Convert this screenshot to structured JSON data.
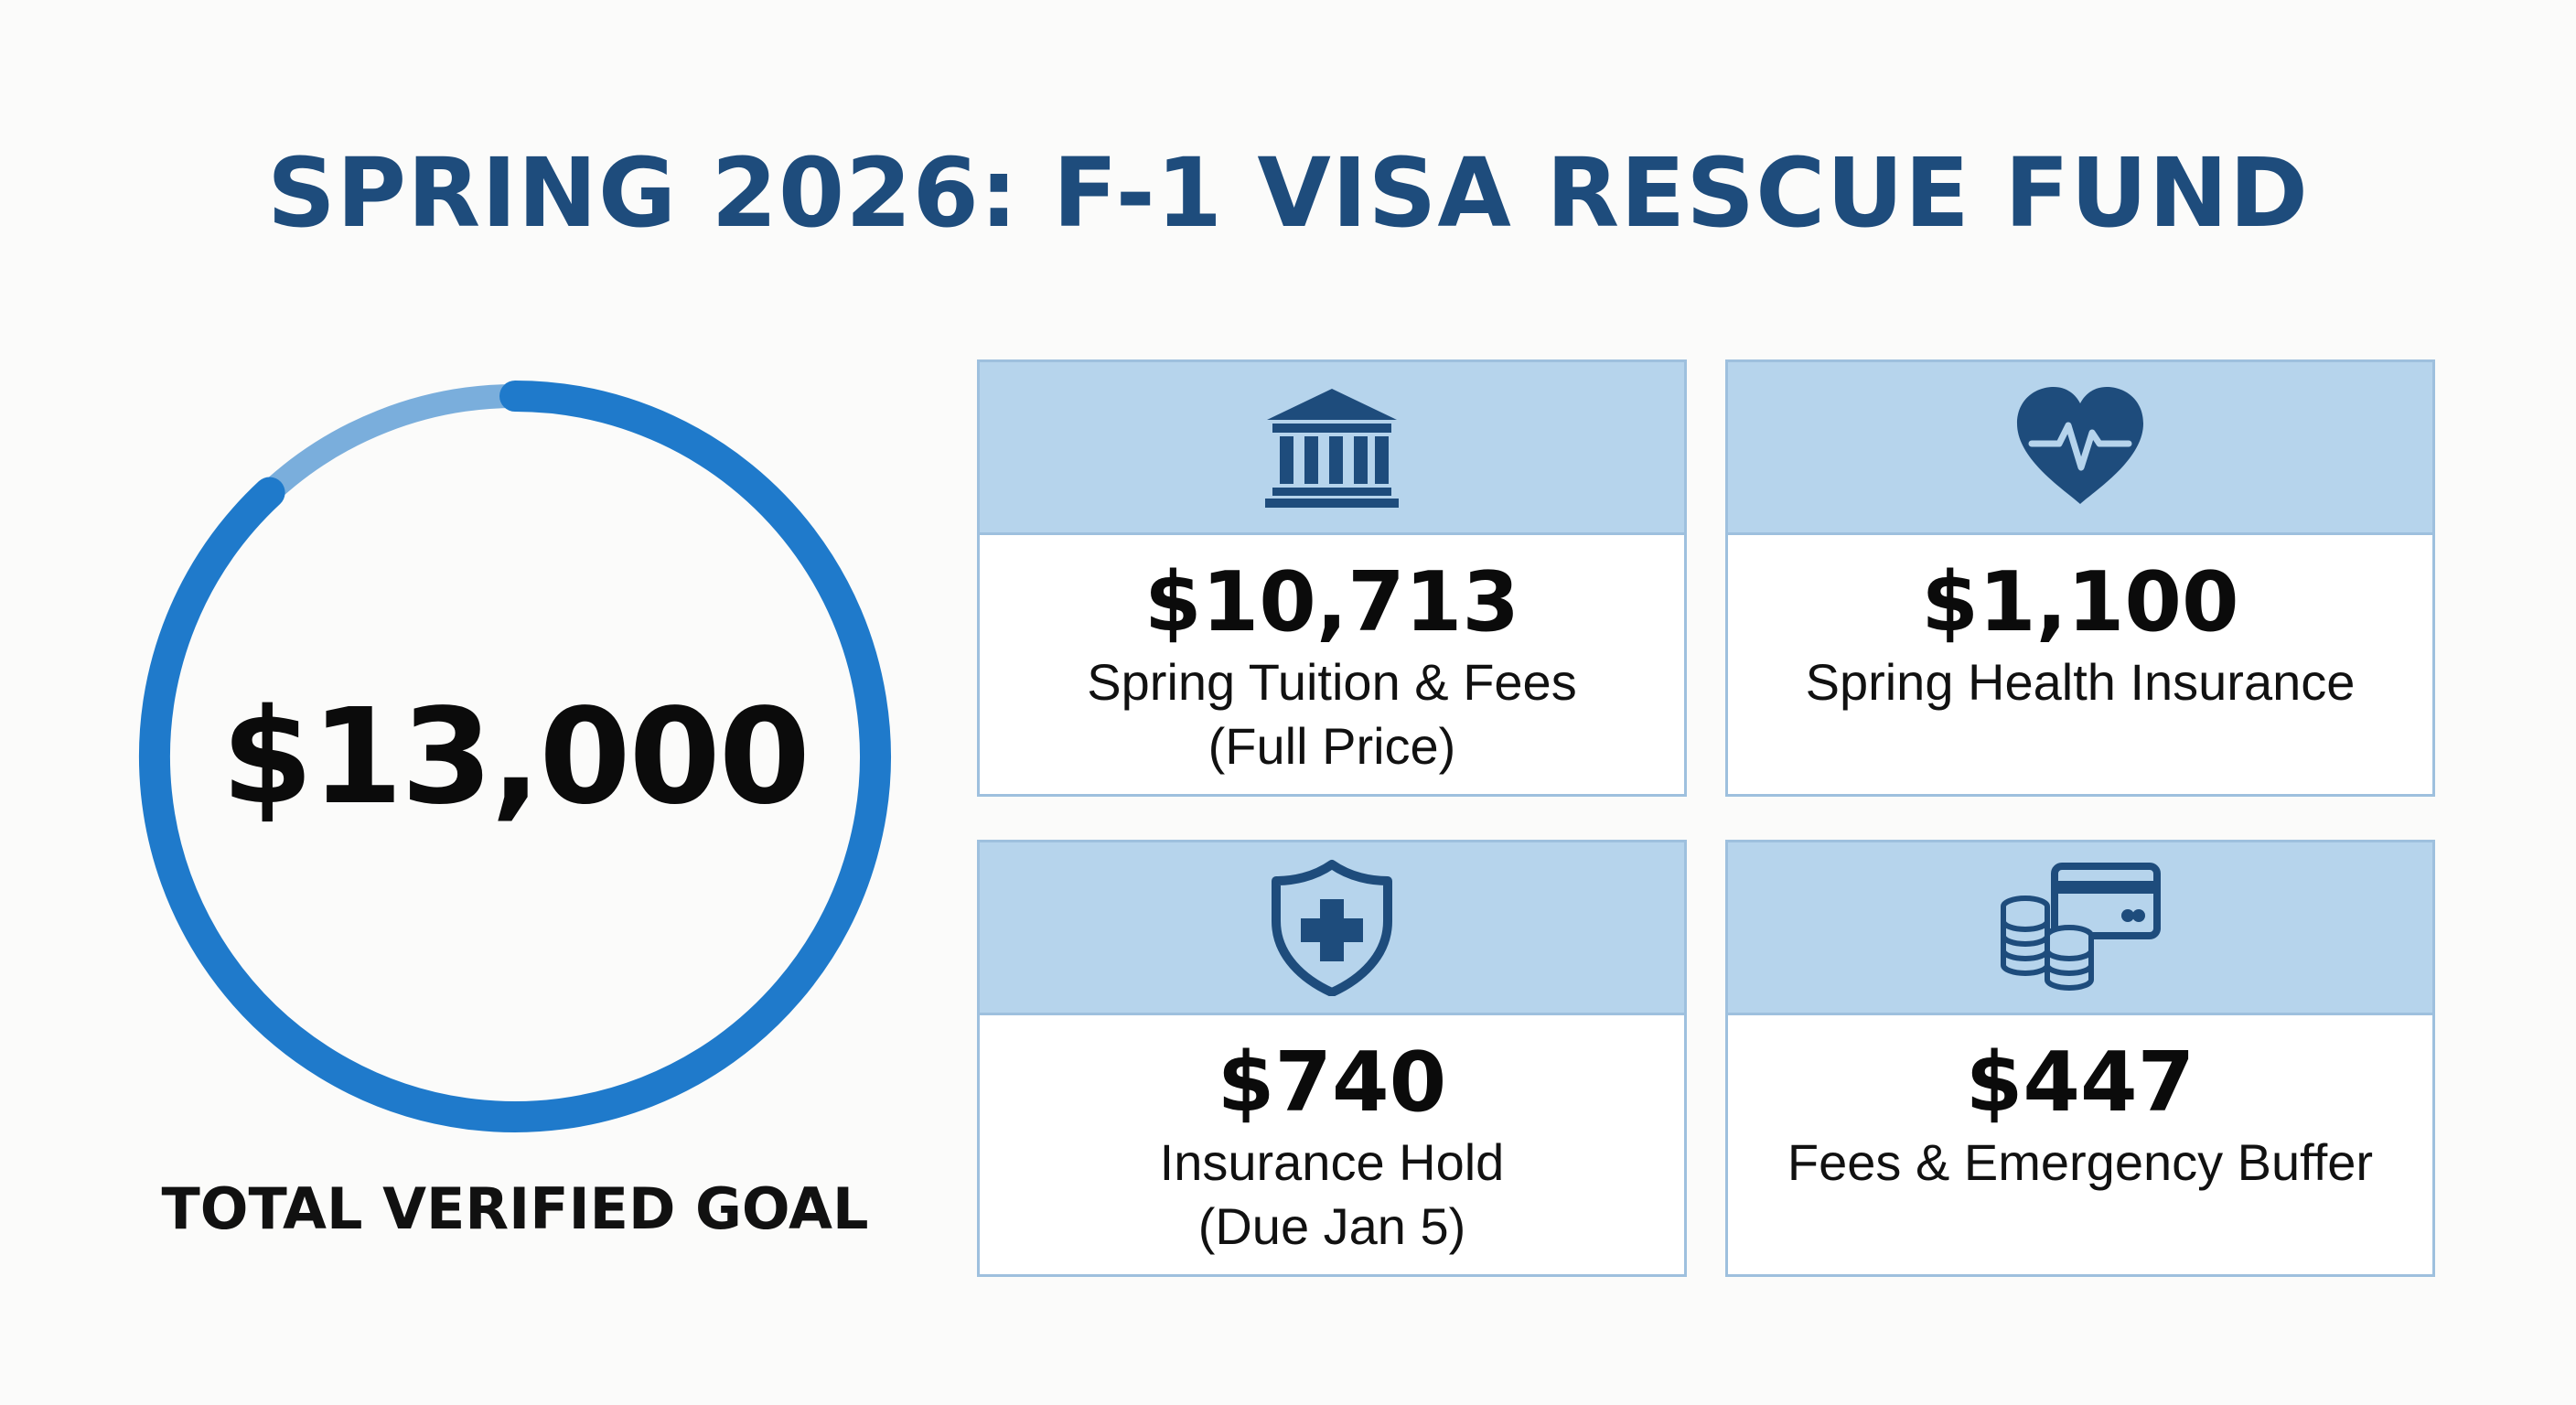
{
  "title": "SPRING 2026: F-1 VISA RESCUE FUND",
  "goal": {
    "amount": "$13,000",
    "label": "TOTAL VERIFIED GOAL",
    "ring_color": "#1f7acb",
    "ring_track_color": "#7aaedc"
  },
  "cards": [
    {
      "icon": "bank-icon",
      "amount": "$10,713",
      "label_line1": "Spring Tuition & Fees",
      "label_line2": "(Full Price)"
    },
    {
      "icon": "heart-pulse-icon",
      "amount": "$1,100",
      "label_line1": "Spring Health Insurance",
      "label_line2": ""
    },
    {
      "icon": "shield-plus-icon",
      "amount": "$740",
      "label_line1": "Insurance Hold",
      "label_line2": "(Due Jan 5)"
    },
    {
      "icon": "coins-card-icon",
      "amount": "$447",
      "label_line1": "Fees & Emergency Buffer",
      "label_line2": ""
    }
  ],
  "colors": {
    "title": "#1e4c7c",
    "icon": "#1e4c7c",
    "band": "#b6d4ec",
    "border": "#9ec0de"
  }
}
